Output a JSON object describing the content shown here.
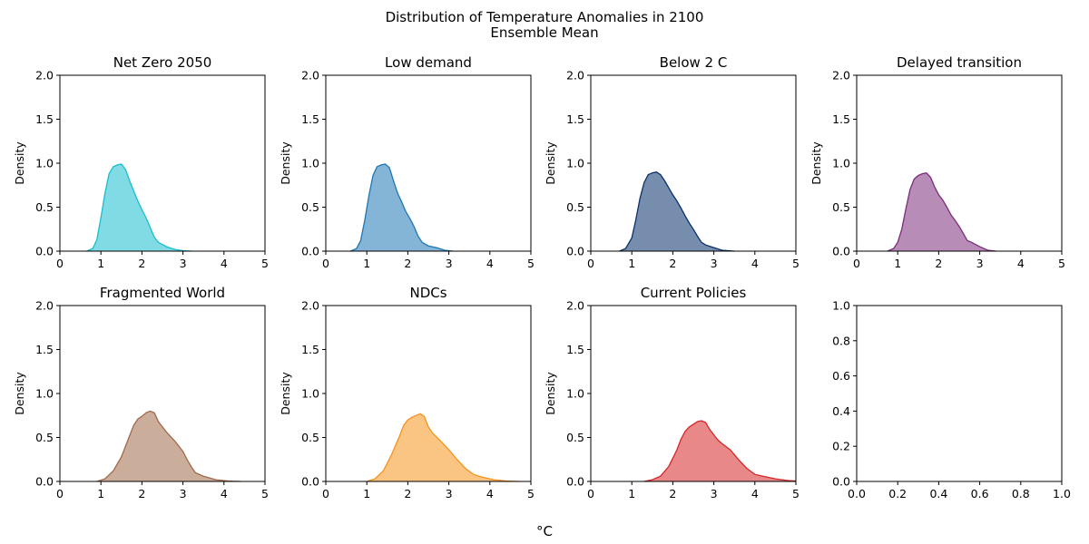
{
  "figure": {
    "suptitle_line1": "Distribution of Temperature Anomalies in 2100",
    "suptitle_line2": "Ensemble Mean",
    "xlabel": "°C"
  },
  "chart_data": [
    {
      "type": "area",
      "title": "Net Zero 2050",
      "ylabel": "Density",
      "color": "#17becf",
      "xlim": [
        0,
        5
      ],
      "ylim": [
        0,
        2
      ],
      "xticks": [
        "0",
        "1",
        "2",
        "3",
        "4",
        "5"
      ],
      "yticks": [
        "0.0",
        "0.5",
        "1.0",
        "1.5",
        "2.0"
      ],
      "x": [
        0.65,
        0.8,
        0.9,
        1.0,
        1.1,
        1.2,
        1.3,
        1.4,
        1.5,
        1.6,
        1.7,
        1.8,
        1.9,
        2.0,
        2.1,
        2.2,
        2.3,
        2.4,
        2.6,
        2.8,
        3.0,
        3.2
      ],
      "y": [
        0.0,
        0.03,
        0.13,
        0.38,
        0.66,
        0.88,
        0.96,
        0.98,
        0.99,
        0.93,
        0.8,
        0.68,
        0.57,
        0.47,
        0.38,
        0.27,
        0.16,
        0.1,
        0.05,
        0.02,
        0.005,
        0.0
      ]
    },
    {
      "type": "area",
      "title": "Low demand",
      "ylabel": "Density",
      "color": "#1f77b4",
      "xlim": [
        0,
        5
      ],
      "ylim": [
        0,
        2
      ],
      "xticks": [
        "0",
        "1",
        "2",
        "3",
        "4",
        "5"
      ],
      "yticks": [
        "0.0",
        "0.5",
        "1.0",
        "1.5",
        "2.0"
      ],
      "x": [
        0.6,
        0.75,
        0.85,
        0.95,
        1.05,
        1.15,
        1.25,
        1.35,
        1.45,
        1.55,
        1.65,
        1.75,
        1.85,
        1.95,
        2.05,
        2.15,
        2.25,
        2.35,
        2.5,
        2.7,
        2.9,
        3.1
      ],
      "y": [
        0.0,
        0.03,
        0.12,
        0.35,
        0.63,
        0.86,
        0.96,
        0.98,
        0.99,
        0.95,
        0.8,
        0.66,
        0.56,
        0.45,
        0.37,
        0.28,
        0.17,
        0.1,
        0.06,
        0.04,
        0.01,
        0.0
      ]
    },
    {
      "type": "area",
      "title": "Below 2 C",
      "ylabel": "Density",
      "color": "#08306b",
      "xlim": [
        0,
        5
      ],
      "ylim": [
        0,
        2
      ],
      "xticks": [
        "0",
        "1",
        "2",
        "3",
        "4",
        "5"
      ],
      "yticks": [
        "0.0",
        "0.5",
        "1.0",
        "1.5",
        "2.0"
      ],
      "x": [
        0.7,
        0.85,
        1.0,
        1.1,
        1.2,
        1.3,
        1.4,
        1.5,
        1.6,
        1.7,
        1.8,
        1.9,
        2.0,
        2.1,
        2.2,
        2.3,
        2.4,
        2.5,
        2.6,
        2.7,
        2.8,
        3.0,
        3.2,
        3.5
      ],
      "y": [
        0.0,
        0.03,
        0.15,
        0.36,
        0.6,
        0.78,
        0.87,
        0.89,
        0.9,
        0.87,
        0.8,
        0.72,
        0.64,
        0.57,
        0.49,
        0.4,
        0.32,
        0.25,
        0.17,
        0.1,
        0.07,
        0.04,
        0.01,
        0.0
      ]
    },
    {
      "type": "area",
      "title": "Delayed transition",
      "ylabel": "Density",
      "color": "#7b2d7b",
      "xlim": [
        0,
        5
      ],
      "ylim": [
        0,
        2
      ],
      "xticks": [
        "0",
        "1",
        "2",
        "3",
        "4",
        "5"
      ],
      "yticks": [
        "0.0",
        "0.5",
        "1.0",
        "1.5",
        "2.0"
      ],
      "x": [
        0.75,
        0.9,
        1.0,
        1.1,
        1.2,
        1.3,
        1.4,
        1.5,
        1.6,
        1.7,
        1.8,
        1.9,
        2.0,
        2.1,
        2.2,
        2.3,
        2.4,
        2.5,
        2.6,
        2.7,
        2.8,
        3.0,
        3.2,
        3.4
      ],
      "y": [
        0.0,
        0.03,
        0.1,
        0.25,
        0.48,
        0.7,
        0.82,
        0.86,
        0.88,
        0.89,
        0.84,
        0.73,
        0.64,
        0.58,
        0.5,
        0.41,
        0.35,
        0.28,
        0.2,
        0.12,
        0.1,
        0.05,
        0.01,
        0.0
      ]
    },
    {
      "type": "area",
      "title": "Fragmented World",
      "ylabel": "Density",
      "color": "#a0694a",
      "xlim": [
        0,
        5
      ],
      "ylim": [
        0,
        2
      ],
      "xticks": [
        "0",
        "1",
        "2",
        "3",
        "4",
        "5"
      ],
      "yticks": [
        "0.0",
        "0.5",
        "1.0",
        "1.5",
        "2.0"
      ],
      "x": [
        0.9,
        1.1,
        1.3,
        1.5,
        1.7,
        1.8,
        1.9,
        2.0,
        2.1,
        2.2,
        2.3,
        2.4,
        2.6,
        2.8,
        3.0,
        3.1,
        3.2,
        3.3,
        3.5,
        3.8,
        4.1,
        4.4
      ],
      "y": [
        0.0,
        0.03,
        0.12,
        0.28,
        0.52,
        0.64,
        0.71,
        0.74,
        0.78,
        0.8,
        0.78,
        0.68,
        0.56,
        0.46,
        0.34,
        0.25,
        0.17,
        0.1,
        0.06,
        0.02,
        0.005,
        0.0
      ]
    },
    {
      "type": "area",
      "title": "NDCs",
      "ylabel": "Density",
      "color": "#f5931e",
      "xlim": [
        0,
        5
      ],
      "ylim": [
        0,
        2
      ],
      "xticks": [
        "0",
        "1",
        "2",
        "3",
        "4",
        "5"
      ],
      "yticks": [
        "0.0",
        "0.5",
        "1.0",
        "1.5",
        "2.0"
      ],
      "x": [
        1.0,
        1.2,
        1.4,
        1.6,
        1.8,
        1.9,
        2.0,
        2.1,
        2.2,
        2.3,
        2.4,
        2.5,
        2.6,
        2.8,
        3.0,
        3.2,
        3.4,
        3.6,
        3.8,
        4.1,
        4.4,
        4.7
      ],
      "y": [
        0.0,
        0.03,
        0.12,
        0.3,
        0.52,
        0.64,
        0.7,
        0.73,
        0.75,
        0.77,
        0.74,
        0.62,
        0.55,
        0.46,
        0.36,
        0.25,
        0.15,
        0.08,
        0.05,
        0.02,
        0.005,
        0.0
      ]
    },
    {
      "type": "area",
      "title": "Current Policies",
      "ylabel": "Density",
      "color": "#d62728",
      "xlim": [
        0,
        5
      ],
      "ylim": [
        0,
        2
      ],
      "xticks": [
        "0",
        "1",
        "2",
        "3",
        "4",
        "5"
      ],
      "yticks": [
        "0.0",
        "0.5",
        "1.0",
        "1.5",
        "2.0"
      ],
      "x": [
        1.3,
        1.5,
        1.7,
        1.9,
        2.1,
        2.2,
        2.3,
        2.4,
        2.5,
        2.6,
        2.7,
        2.8,
        2.9,
        3.0,
        3.1,
        3.2,
        3.4,
        3.6,
        3.8,
        4.0,
        4.2,
        4.5,
        4.8,
        5.0
      ],
      "y": [
        0.0,
        0.02,
        0.06,
        0.17,
        0.36,
        0.48,
        0.57,
        0.62,
        0.65,
        0.68,
        0.69,
        0.67,
        0.59,
        0.53,
        0.47,
        0.43,
        0.36,
        0.25,
        0.15,
        0.08,
        0.06,
        0.03,
        0.01,
        0.005
      ]
    },
    {
      "type": "empty",
      "title": "",
      "ylabel": "",
      "color": "",
      "xlim": [
        0,
        1
      ],
      "ylim": [
        0,
        1
      ],
      "xticks": [
        "0.0",
        "0.2",
        "0.4",
        "0.6",
        "0.8",
        "1.0"
      ],
      "yticks": [
        "0.0",
        "0.2",
        "0.4",
        "0.6",
        "0.8",
        "1.0"
      ],
      "x": [],
      "y": []
    }
  ]
}
